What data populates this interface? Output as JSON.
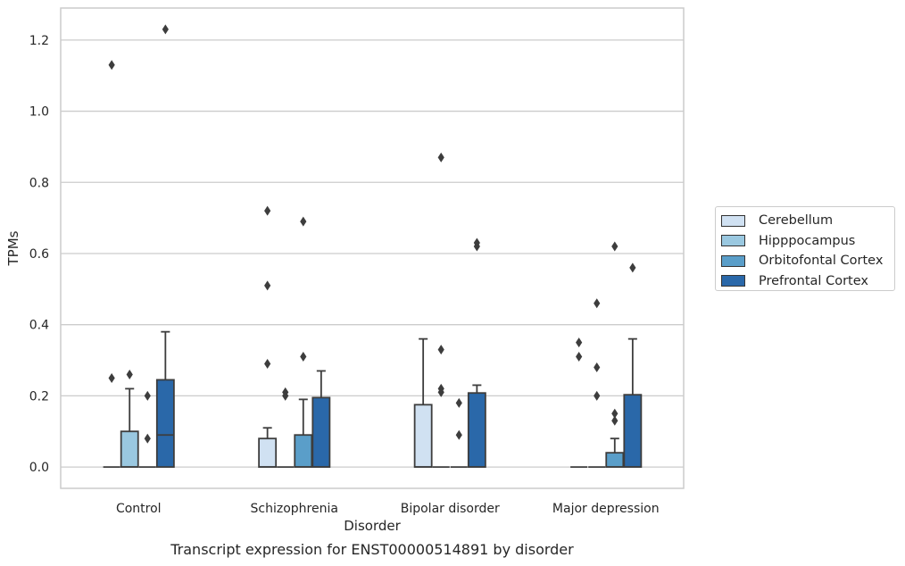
{
  "chart_data": {
    "type": "box",
    "title": "",
    "caption": "Transcript expression for ENST00000514891 by disorder",
    "xlabel": "Disorder",
    "ylabel": "TPMs",
    "ylim": [
      -0.06,
      1.29
    ],
    "yticks": [
      "0.0",
      "0.2",
      "0.4",
      "0.6",
      "0.8",
      "1.0",
      "1.2"
    ],
    "categories": [
      "Control",
      "Schizophrenia",
      "Bipolar disorder",
      "Major depression"
    ],
    "grid": true,
    "legend_position": "right",
    "series": [
      {
        "name": "Cerebellum",
        "color": "#d0e1f2",
        "boxes": [
          {
            "q1": 0,
            "median": 0,
            "q3": 0,
            "whisker_low": 0,
            "whisker_high": 0,
            "outliers": [
              0.25,
              1.13
            ]
          },
          {
            "q1": 0,
            "median": 0,
            "q3": 0.08,
            "whisker_low": 0,
            "whisker_high": 0.11,
            "outliers": [
              0.29,
              0.51,
              0.72
            ]
          },
          {
            "q1": 0,
            "median": 0,
            "q3": 0.175,
            "whisker_low": 0,
            "whisker_high": 0.36,
            "outliers": []
          },
          {
            "q1": 0,
            "median": 0,
            "q3": 0,
            "whisker_low": 0,
            "whisker_high": 0,
            "outliers": [
              0.31,
              0.35
            ]
          }
        ]
      },
      {
        "name": "Hipppocampus",
        "color": "#9ac8e0",
        "boxes": [
          {
            "q1": 0,
            "median": 0,
            "q3": 0.1,
            "whisker_low": 0,
            "whisker_high": 0.22,
            "outliers": [
              0.26
            ]
          },
          {
            "q1": 0,
            "median": 0,
            "q3": 0,
            "whisker_low": 0,
            "whisker_high": 0,
            "outliers": [
              0.2,
              0.21
            ]
          },
          {
            "q1": 0,
            "median": 0,
            "q3": 0,
            "whisker_low": 0,
            "whisker_high": 0,
            "outliers": [
              0.21,
              0.22,
              0.33,
              0.87
            ]
          },
          {
            "q1": 0,
            "median": 0,
            "q3": 0,
            "whisker_low": 0,
            "whisker_high": 0,
            "outliers": [
              0.2,
              0.28,
              0.46
            ]
          }
        ]
      },
      {
        "name": "Orbitofontal Cortex",
        "color": "#5a9ec9",
        "boxes": [
          {
            "q1": 0,
            "median": 0,
            "q3": 0,
            "whisker_low": 0,
            "whisker_high": 0,
            "outliers": [
              0.08,
              0.2
            ]
          },
          {
            "q1": 0,
            "median": 0,
            "q3": 0.09,
            "whisker_low": 0,
            "whisker_high": 0.19,
            "outliers": [
              0.31,
              0.69
            ]
          },
          {
            "q1": 0,
            "median": 0,
            "q3": 0,
            "whisker_low": 0,
            "whisker_high": 0,
            "outliers": [
              0.09,
              0.18
            ]
          },
          {
            "q1": 0,
            "median": 0,
            "q3": 0.04,
            "whisker_low": 0,
            "whisker_high": 0.08,
            "outliers": [
              0.13,
              0.15,
              0.62
            ]
          }
        ]
      },
      {
        "name": "Prefrontal Cortex",
        "color": "#2a68a9",
        "boxes": [
          {
            "q1": 0,
            "median": 0.09,
            "q3": 0.245,
            "whisker_low": 0,
            "whisker_high": 0.38,
            "outliers": [
              1.23
            ]
          },
          {
            "q1": 0,
            "median": 0,
            "q3": 0.195,
            "whisker_low": 0,
            "whisker_high": 0.27,
            "outliers": []
          },
          {
            "q1": 0,
            "median": 0,
            "q3": 0.208,
            "whisker_low": 0,
            "whisker_high": 0.23,
            "outliers": [
              0.62,
              0.63
            ]
          },
          {
            "q1": 0,
            "median": 0,
            "q3": 0.203,
            "whisker_low": 0,
            "whisker_high": 0.36,
            "outliers": [
              0.56
            ]
          }
        ]
      }
    ]
  }
}
